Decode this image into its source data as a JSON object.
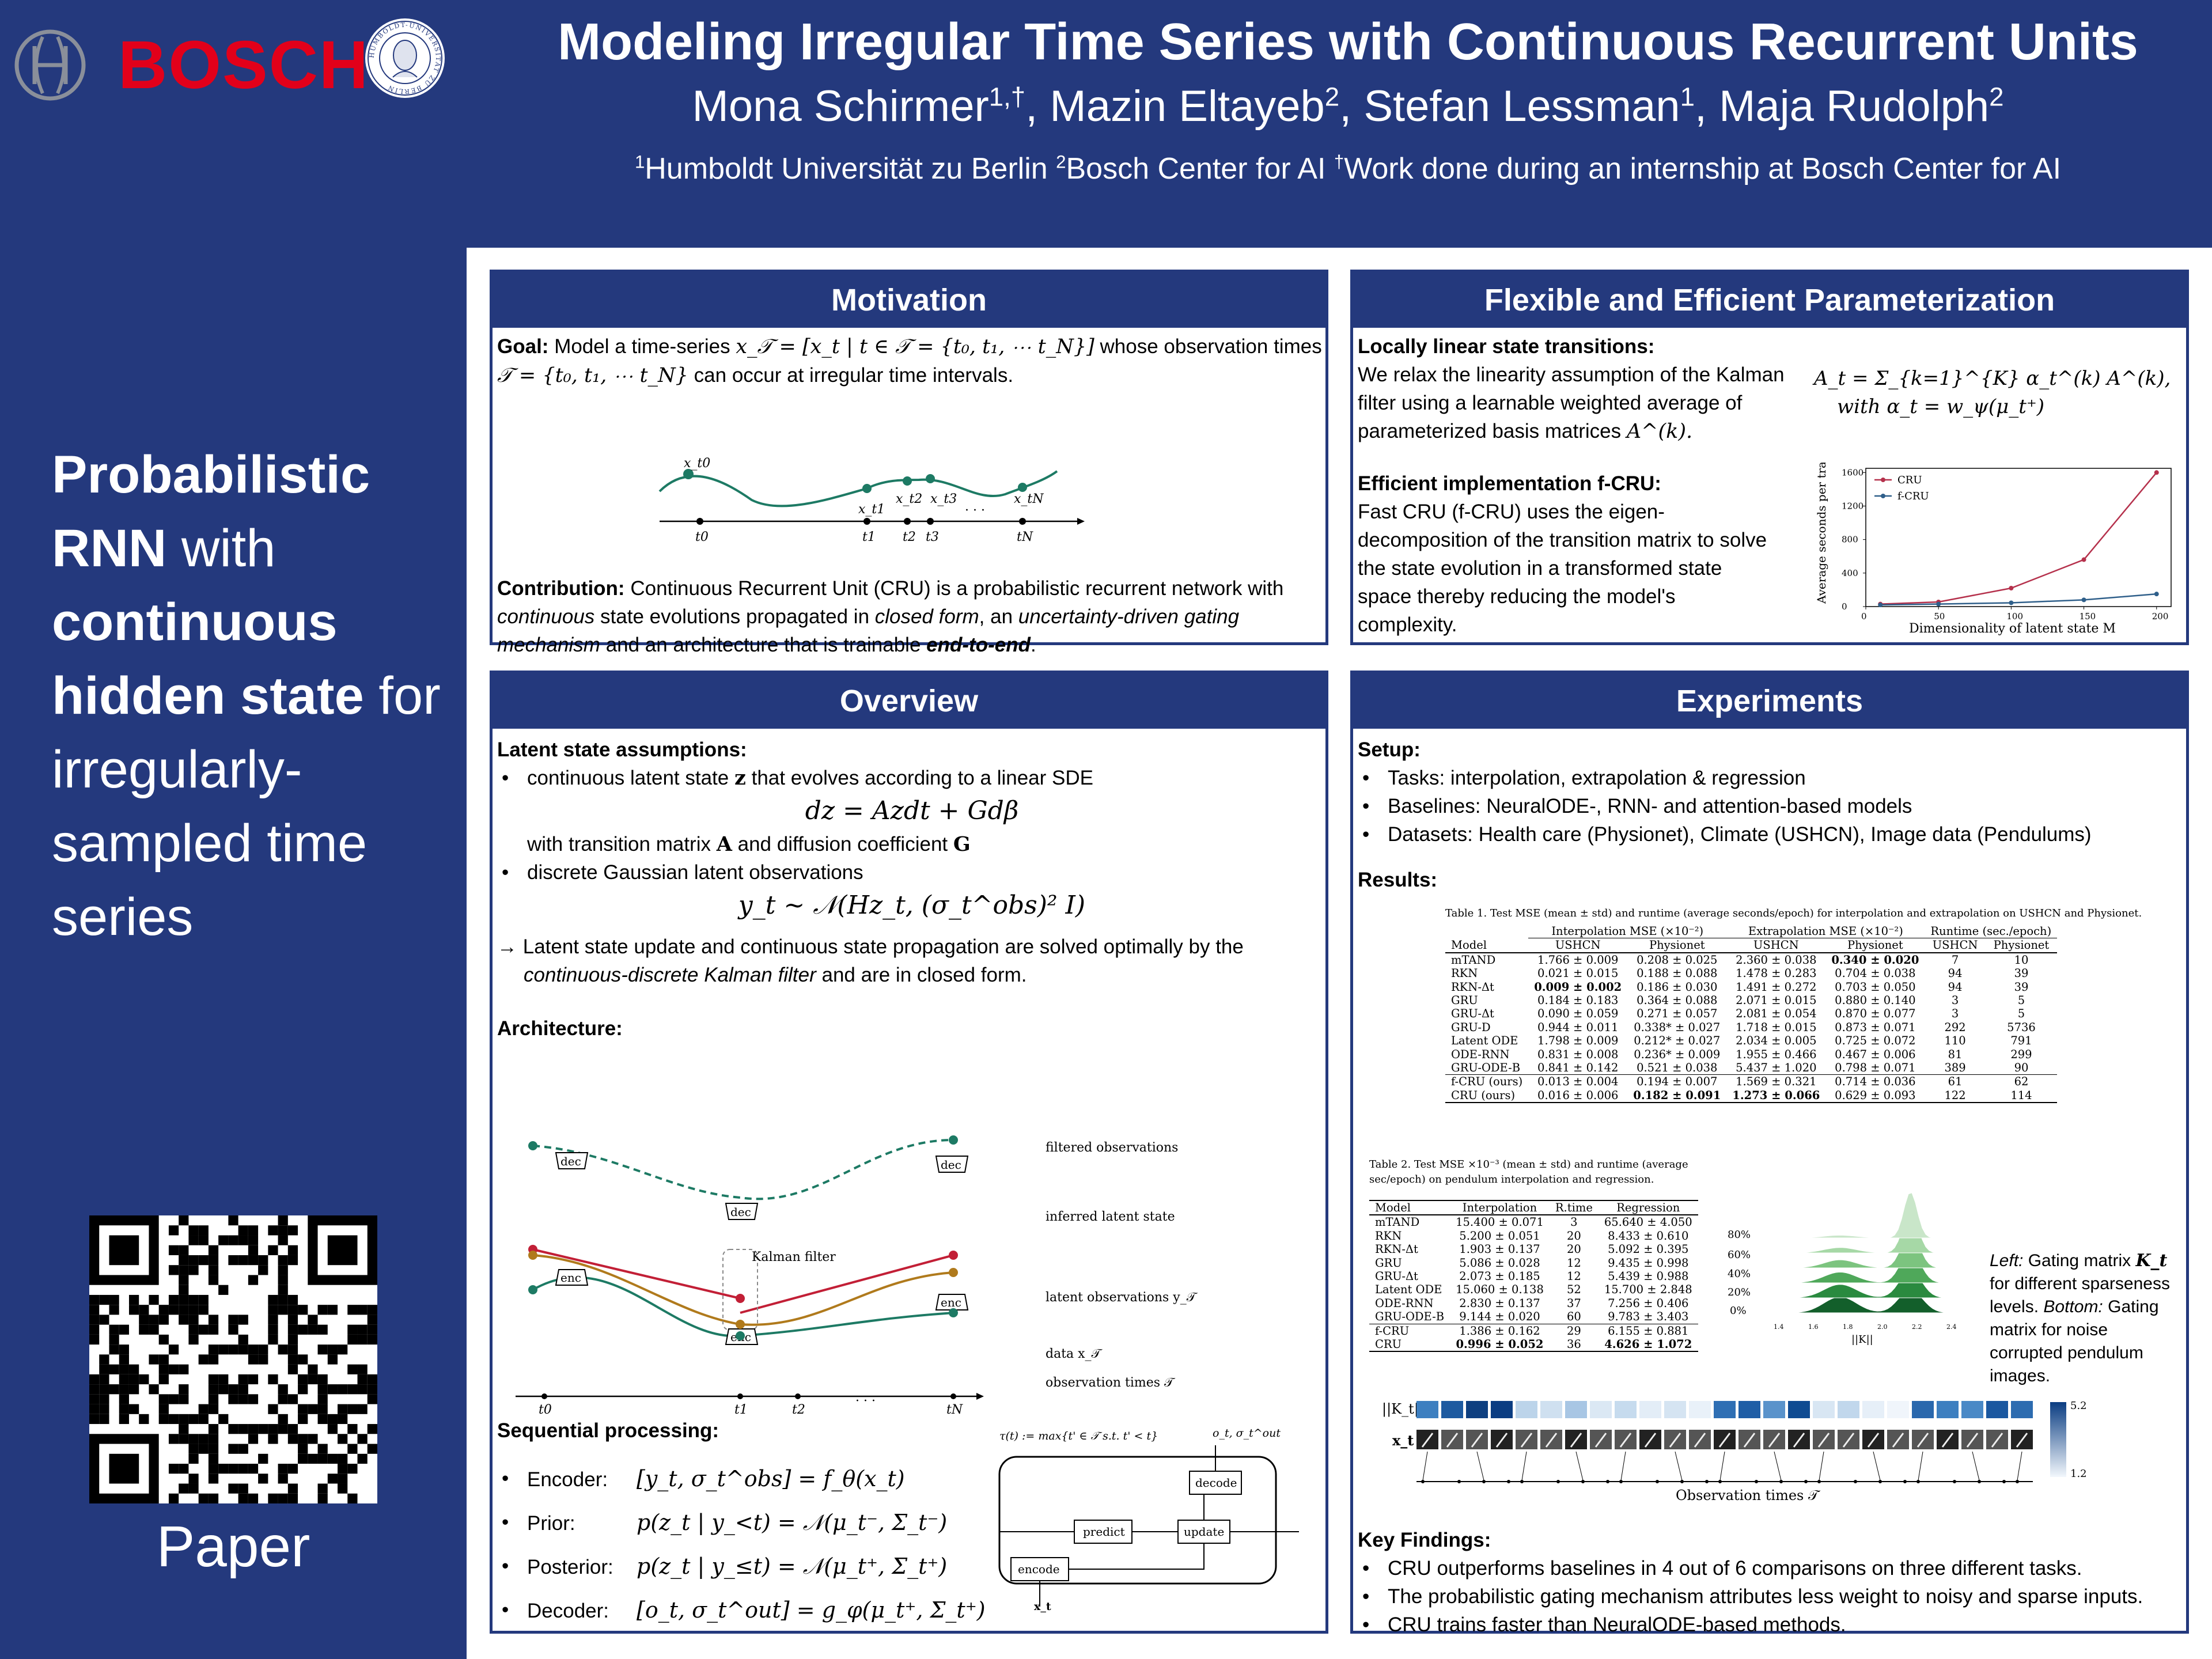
{
  "header": {
    "title": "Modeling Irregular Time Series with Continuous Recurrent Units",
    "authors": [
      {
        "name": "Mona Schirmer",
        "sup": "1,†"
      },
      {
        "name": "Mazin Eltayeb",
        "sup": "2"
      },
      {
        "name": "Stefan Lessman",
        "sup": "1"
      },
      {
        "name": "Maja Rudolph",
        "sup": "2"
      }
    ],
    "affiliations": [
      {
        "sup": "1",
        "text": "Humboldt Universität zu Berlin"
      },
      {
        "sup": "2",
        "text": "Bosch Center for AI"
      },
      {
        "sup": "†",
        "text": "Work done during an internship at Bosch Center for AI"
      }
    ],
    "bosch_wordmark": "BOSCH",
    "seal_text": "HUMBOLDT-UNIVERSITÄT ZU BERLIN",
    "brand_red": "#e2001a",
    "navy": "#24397d"
  },
  "sidebar": {
    "tagline_parts": [
      {
        "text": "Probabilistic RNN",
        "bold": true
      },
      {
        "text": " with ",
        "bold": false
      },
      {
        "text": "continuous hidden state",
        "bold": true
      },
      {
        "text": " for irregularly-sampled time series",
        "bold": false
      }
    ],
    "qr_label": "Paper"
  },
  "motivation": {
    "heading": "Motivation",
    "goal_label": "Goal:",
    "goal_text_1": "Model a time-series",
    "goal_eq_1": "x_𝒯 = [x_t | t ∈ 𝒯 = {t₀, t₁, ⋯ t_N}]",
    "goal_text_2": "whose observation times",
    "goal_eq_2": "𝒯 = {t₀, t₁, ⋯ t_N}",
    "goal_text_3": "can occur at irregular time intervals.",
    "contribution_label": "Contribution:",
    "contribution_text": "Continuous Recurrent Unit (CRU) is a probabilistic recurrent network with",
    "contribution_em1": "continuous",
    "contribution_text2": "state evolutions propagated in",
    "contribution_em2": "closed form",
    "contribution_text3": ", an",
    "contribution_em3": "uncertainty-driven gating mechanism",
    "contribution_text4": "and an architecture that is trainable",
    "contribution_em4": "end-to-end",
    "contribution_text5": ".",
    "figure": {
      "point_labels": [
        "x_t0",
        "x_t1",
        "x_t2",
        "x_t3",
        "x_tN"
      ],
      "tick_labels": [
        "t0",
        "t1",
        "t2",
        "t3",
        "· · ·",
        "tN"
      ]
    }
  },
  "param": {
    "heading": "Flexible and Efficient Parameterization",
    "locally_label": "Locally linear state transitions:",
    "locally_text": "We relax the linearity assumption of the Kalman filter using a learnable weighted average of parameterized basis matrices",
    "locally_eq_tail": "A^(k).",
    "eq_main": "A_t = Σ_{k=1}^{K} α_t^(k) A^(k),",
    "eq_with": "with α_t = w_ψ(μ_t⁺)",
    "efficient_label": "Efficient implementation f-CRU:",
    "efficient_text": "Fast CRU (f-CRU) uses the eigen-decomposition of the transition matrix to solve the state evolution in a transformed state space thereby reducing the model's complexity."
  },
  "chart_data": {
    "type": "line",
    "x": [
      10,
      50,
      100,
      150,
      200
    ],
    "series": [
      {
        "name": "CRU",
        "values": [
          30,
          55,
          220,
          560,
          1600
        ],
        "color": "#b5314c"
      },
      {
        "name": "f-CRU",
        "values": [
          20,
          30,
          45,
          80,
          150
        ],
        "color": "#2f5f8a"
      }
    ],
    "xlabel": "Dimensionality of latent state M",
    "ylabel": "Average seconds per training epoch",
    "xticks": [
      0,
      50,
      100,
      150,
      200
    ],
    "yticks": [
      0,
      400,
      800,
      1200,
      1600
    ],
    "xlim": [
      0,
      210
    ],
    "ylim": [
      0,
      1650
    ],
    "legend": "top-left"
  },
  "overview": {
    "heading": "Overview",
    "latent_label": "Latent state assumptions:",
    "bullet1a": "continuous latent state",
    "bullet1_sym": "z",
    "bullet1b": "that evolves according to a linear SDE",
    "sde": "dz = Azdt + Gdβ",
    "trans_text_a": "with transition matrix",
    "trans_sym_a": "A",
    "trans_text_b": "and diffusion coefficient",
    "trans_sym_b": "G",
    "bullet2": "discrete Gaussian latent observations",
    "obs_eq": "y_t ~ 𝒩(Hz_t, (σ_t^obs)² I)",
    "arrow_text_a": "→ Latent state update and continuous state propagation are solved optimally by the",
    "arrow_text_em": "continuous-discrete Kalman filter",
    "arrow_text_b": "and are in closed form.",
    "arch_label": "Architecture:",
    "arch_fig": {
      "legend": [
        "filtered observations",
        "inferred latent state",
        "latent observations y_𝒯",
        "data x_𝒯",
        "observation times 𝒯"
      ],
      "boxes": [
        "dec",
        "dec",
        "dec",
        "enc",
        "enc",
        "enc"
      ],
      "kalman": "Kalman filter",
      "ticks": [
        "t0",
        "t1",
        "t2",
        "· · ·",
        "tN"
      ]
    },
    "seq_label": "Sequential processing:",
    "seq_items": [
      {
        "name": "Encoder:",
        "eq": "[y_t, σ_t^obs] = f_θ(x_t)"
      },
      {
        "name": "Prior:",
        "eq": "p(z_t | y_<t) = 𝒩(μ_t⁻, Σ_t⁻)"
      },
      {
        "name": "Posterior:",
        "eq": "p(z_t | y_≤t) = 𝒩(μ_t⁺, Σ_t⁺)"
      },
      {
        "name": "Decoder:",
        "eq": "[o_t, σ_t^out] = g_φ(μ_t⁺, Σ_t⁺)"
      }
    ],
    "flow": {
      "tau_def": "τ(t) := max{t' ∈ 𝒯 s.t. t' < t}",
      "predict": "predict",
      "update": "update",
      "decode": "decode",
      "encode": "encode",
      "out_label": "o_t, σ_t^out",
      "in_label": "x_t"
    }
  },
  "experiments": {
    "heading": "Experiments",
    "setup_label": "Setup:",
    "setup_items": [
      "Tasks: interpolation, extrapolation & regression",
      "Baselines: NeuralODE-, RNN- and attention-based models",
      "Datasets: Health care (Physionet), Climate (USHCN), Image data (Pendulums)"
    ],
    "results_label": "Results:",
    "table1": {
      "caption": "Table 1. Test MSE (mean ± std) and runtime (average seconds/epoch) for interpolation and extrapolation on USHCN and Physionet.",
      "group_headers": [
        "Interpolation MSE (×10⁻²)",
        "Extrapolation MSE (×10⁻²)",
        "Runtime (sec./epoch)"
      ],
      "columns": [
        "Model",
        "USHCN",
        "Physionet",
        "USHCN",
        "Physionet",
        "USHCN",
        "Physionet"
      ],
      "rows": [
        [
          "mTAND",
          "1.766 ± 0.009",
          "0.208 ± 0.025",
          "2.360 ± 0.038",
          "0.340 ± 0.020",
          "7",
          "10"
        ],
        [
          "RKN",
          "0.021 ± 0.015",
          "0.188 ± 0.088",
          "1.478 ± 0.283",
          "0.704 ± 0.038",
          "94",
          "39"
        ],
        [
          "RKN-Δt",
          "0.009 ± 0.002",
          "0.186 ± 0.030",
          "1.491 ± 0.272",
          "0.703 ± 0.050",
          "94",
          "39"
        ],
        [
          "GRU",
          "0.184 ± 0.183",
          "0.364 ± 0.088",
          "2.071 ± 0.015",
          "0.880 ± 0.140",
          "3",
          "5"
        ],
        [
          "GRU-Δt",
          "0.090 ± 0.059",
          "0.271 ± 0.057",
          "2.081 ± 0.054",
          "0.870 ± 0.077",
          "3",
          "5"
        ],
        [
          "GRU-D",
          "0.944 ± 0.011",
          "0.338* ± 0.027",
          "1.718 ± 0.015",
          "0.873 ± 0.071",
          "292",
          "5736"
        ],
        [
          "Latent ODE",
          "1.798 ± 0.009",
          "0.212* ± 0.027",
          "2.034 ± 0.005",
          "0.725 ± 0.072",
          "110",
          "791"
        ],
        [
          "ODE-RNN",
          "0.831 ± 0.008",
          "0.236* ± 0.009",
          "1.955 ± 0.466",
          "0.467 ± 0.006",
          "81",
          "299"
        ],
        [
          "GRU-ODE-B",
          "0.841 ± 0.142",
          "0.521 ± 0.038",
          "5.437 ± 1.020",
          "0.798 ± 0.071",
          "389",
          "90"
        ],
        [
          "f-CRU (ours)",
          "0.013 ± 0.004",
          "0.194 ± 0.007",
          "1.569 ± 0.321",
          "0.714 ± 0.036",
          "61",
          "62"
        ],
        [
          "CRU (ours)",
          "0.016 ± 0.006",
          "0.182 ± 0.091",
          "1.273 ± 0.066",
          "0.629 ± 0.093",
          "122",
          "114"
        ]
      ],
      "bold_cells": [
        [
          0,
          4
        ],
        [
          2,
          1
        ],
        [
          10,
          2
        ],
        [
          10,
          3
        ]
      ]
    },
    "table2": {
      "caption": "Table 2. Test MSE ×10⁻³ (mean ± std) and runtime (average sec/epoch) on pendulum interpolation and regression.",
      "columns": [
        "Model",
        "Interpolation",
        "R.time",
        "Regression"
      ],
      "rows": [
        [
          "mTAND",
          "15.400 ± 0.071",
          "3",
          "65.640 ± 4.050"
        ],
        [
          "RKN",
          "5.200 ± 0.051",
          "20",
          "8.433 ± 0.610"
        ],
        [
          "RKN-Δt",
          "1.903 ± 0.137",
          "20",
          "5.092 ± 0.395"
        ],
        [
          "GRU",
          "5.086 ± 0.028",
          "12",
          "9.435 ± 0.998"
        ],
        [
          "GRU-Δt",
          "2.073 ± 0.185",
          "12",
          "5.439 ± 0.988"
        ],
        [
          "Latent ODE",
          "15.060 ± 0.138",
          "52",
          "15.700 ± 2.848"
        ],
        [
          "ODE-RNN",
          "2.830 ± 0.137",
          "37",
          "7.256 ± 0.406"
        ],
        [
          "GRU-ODE-B",
          "9.144 ± 0.020",
          "60",
          "9.783 ± 3.403"
        ],
        [
          "f-CRU",
          "1.386 ± 0.162",
          "29",
          "6.155 ± 0.881"
        ],
        [
          "CRU",
          "0.996 ± 0.052",
          "36",
          "4.626 ± 1.072"
        ]
      ]
    },
    "ridge": {
      "ylabels": [
        "80%",
        "60%",
        "40%",
        "20%",
        "0%"
      ],
      "xticks": [
        "1.4",
        "1.6",
        "1.8",
        "2.0",
        "2.2",
        "2.4"
      ],
      "xlabel": "||K||"
    },
    "gating_note": {
      "left_em": "Left:",
      "left_text": "Gating matrix",
      "left_sym": "K_t",
      "left_text2": "for different sparseness levels.",
      "bottom_em": "Bottom:",
      "bottom_text": "Gating matrix for noise corrupted pendulum images."
    },
    "strip": {
      "row1_label": "||K_t||",
      "row2_label": "x_t",
      "xlabel": "Observation times 𝒯",
      "cbar_max": "5.2",
      "cbar_min": "1.2"
    },
    "findings_label": "Key Findings:",
    "findings": [
      "CRU outperforms baselines in 4 out of 6 comparisons on three different tasks.",
      "The probabilistic gating mechanism attributes less weight to noisy and sparse inputs.",
      "CRU trains faster than NeuralODE-based methods."
    ]
  }
}
